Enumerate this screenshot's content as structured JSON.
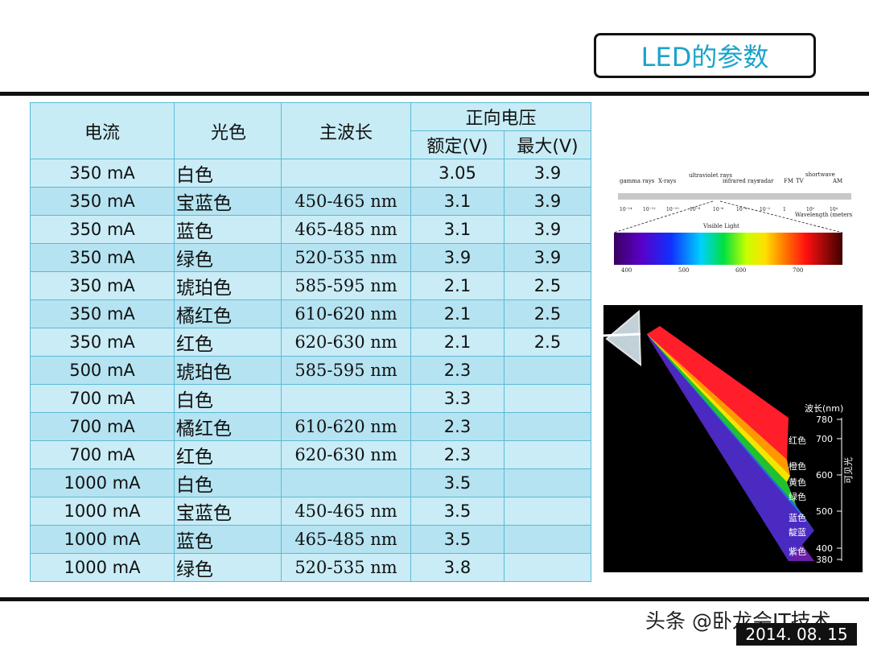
{
  "title": "LED的参数",
  "table": {
    "headers": {
      "current": "电流",
      "color": "光色",
      "wavelength": "主波长",
      "voltage_group": "正向电压",
      "rated": "额定(V)",
      "max": "最大(V)"
    },
    "rows": [
      {
        "current": "350 mA",
        "color": "白色",
        "wavelength": "",
        "rated": "3.05",
        "max": "3.9"
      },
      {
        "current": "350 mA",
        "color": "宝蓝色",
        "wavelength": "450-465 nm",
        "rated": "3.1",
        "max": "3.9"
      },
      {
        "current": "350 mA",
        "color": "蓝色",
        "wavelength": "465-485 nm",
        "rated": "3.1",
        "max": "3.9"
      },
      {
        "current": "350 mA",
        "color": "绿色",
        "wavelength": "520-535 nm",
        "rated": "3.9",
        "max": "3.9"
      },
      {
        "current": "350 mA",
        "color": "琥珀色",
        "wavelength": "585-595 nm",
        "rated": "2.1",
        "max": "2.5"
      },
      {
        "current": "350 mA",
        "color": "橘红色",
        "wavelength": "610-620 nm",
        "rated": "2.1",
        "max": "2.5"
      },
      {
        "current": "350 mA",
        "color": "红色",
        "wavelength": "620-630 nm",
        "rated": "2.1",
        "max": "2.5"
      },
      {
        "current": "500 mA",
        "color": "琥珀色",
        "wavelength": "585-595 nm",
        "rated": "2.3",
        "max": ""
      },
      {
        "current": "700 mA",
        "color": "白色",
        "wavelength": "",
        "rated": "3.3",
        "max": ""
      },
      {
        "current": "700 mA",
        "color": "橘红色",
        "wavelength": "610-620 nm",
        "rated": "2.3",
        "max": ""
      },
      {
        "current": "700 mA",
        "color": "红色",
        "wavelength": "620-630 nm",
        "rated": "2.3",
        "max": ""
      },
      {
        "current": "1000 mA",
        "color": "白色",
        "wavelength": "",
        "rated": "3.5",
        "max": ""
      },
      {
        "current": "1000 mA",
        "color": "宝蓝色",
        "wavelength": "450-465 nm",
        "rated": "3.5",
        "max": ""
      },
      {
        "current": "1000 mA",
        "color": "蓝色",
        "wavelength": "465-485 nm",
        "rated": "3.5",
        "max": ""
      },
      {
        "current": "1000 mA",
        "color": "绿色",
        "wavelength": "520-535 nm",
        "rated": "3.8",
        "max": ""
      }
    ]
  },
  "spectrum": {
    "bands": [
      "gamma rays",
      "X-rays",
      "ultraviolet rays",
      "infrared rays",
      "radar",
      "FM",
      "TV",
      "shortwave",
      "AM"
    ],
    "exponents": [
      "10⁻¹⁴",
      "10⁻¹²",
      "10⁻¹⁰",
      "10⁻⁸",
      "10⁻⁶",
      "10⁻⁴",
      "10⁻²",
      "1",
      "10²",
      "10⁴"
    ],
    "wavelength_label": "Wavelength (meters)",
    "visible_label": "Visible Light",
    "visible_ticks": [
      "400",
      "500",
      "600",
      "700"
    ]
  },
  "prism": {
    "axis_title": "波长(nm)",
    "colors": [
      "红色",
      "橙色",
      "黄色",
      "绿色",
      "蓝色",
      "靛蓝",
      "紫色"
    ],
    "ticks": [
      "780",
      "700",
      "600",
      "500",
      "400",
      "380"
    ],
    "visible_label": "可见光"
  },
  "watermark": "头条 @卧龙会IT技术",
  "date": "2014. 08. 15"
}
